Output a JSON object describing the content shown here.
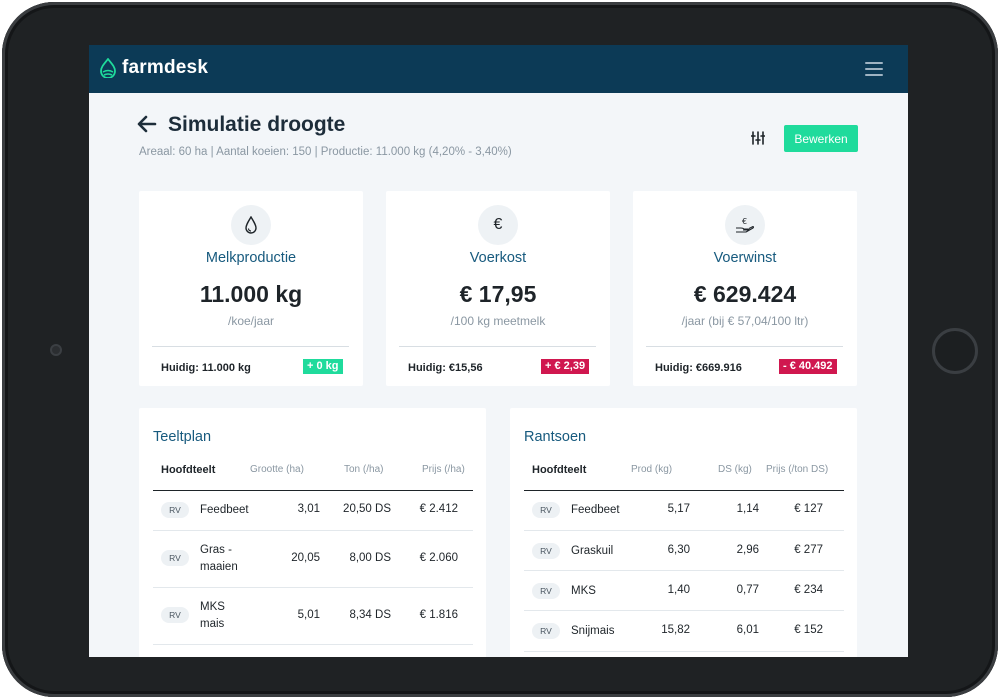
{
  "app": {
    "name": "farmdesk"
  },
  "page": {
    "title": "Simulatie droogte",
    "subtitle": "Areaal: 60 ha  |  Aantal koeien: 150  |  Productie:  11.000 kg (4,20% - 3,40%)",
    "edit_label": "Bewerken"
  },
  "cards": [
    {
      "icon": "droplet-icon",
      "title": "Melkproductie",
      "value": "11.000 kg",
      "unit": "/koe/jaar",
      "current": "Huidig: 11.000 kg",
      "delta": "+ 0 kg",
      "delta_color": "#1fdb9c"
    },
    {
      "icon": "euro-icon",
      "title": "Voerkost",
      "value": "€ 17,95",
      "unit": "/100 kg meetmelk",
      "current": "Huidig: €15,56",
      "delta": "+ € 2,39",
      "delta_color": "#d0174f"
    },
    {
      "icon": "euro-hand-icon",
      "title": "Voerwinst",
      "value": "€ 629.424",
      "unit": "/jaar (bij € 57,04/100 ltr)",
      "current": "Huidig: €669.916",
      "delta": "- € 40.492",
      "delta_color": "#d0174f"
    }
  ],
  "teeltplan": {
    "title": "Teeltplan",
    "headers": {
      "main": "Hoofdteelt",
      "c1": "Grootte (ha)",
      "c2": "Ton (/ha)",
      "c3": "Prijs (/ha)"
    },
    "rows": [
      {
        "tag": "RV",
        "name": "Feedbeet",
        "c1": "3,01",
        "c2": "20,50 DS",
        "c3": "€ 2.412"
      },
      {
        "tag": "RV",
        "name": "Gras -\nmaaien",
        "c1": "20,05",
        "c2": "8,00 DS",
        "c3": "€ 2.060"
      },
      {
        "tag": "RV",
        "name": "MKS\nmais",
        "c1": "5,01",
        "c2": "8,34 DS",
        "c3": "€ 1.816"
      }
    ]
  },
  "rantsoen": {
    "title": "Rantsoen",
    "headers": {
      "main": "Hoofdteelt",
      "c1": "Prod (kg)",
      "c2": "DS (kg)",
      "c3": "Prijs (/ton DS)"
    },
    "rows": [
      {
        "tag": "RV",
        "name": "Feedbeet",
        "c1": "5,17",
        "c2": "1,14",
        "c3": "€ 127"
      },
      {
        "tag": "RV",
        "name": "Graskuil",
        "c1": "6,30",
        "c2": "2,96",
        "c3": "€ 277"
      },
      {
        "tag": "RV",
        "name": "MKS",
        "c1": "1,40",
        "c2": "0,77",
        "c3": "€ 234"
      },
      {
        "tag": "RV",
        "name": "Snijmais",
        "c1": "15,82",
        "c2": "6,01",
        "c3": "€ 152"
      }
    ]
  },
  "colors": {
    "nav": "#0c3a56",
    "accent": "#1fdb9c",
    "negative": "#d0174f",
    "heading": "#175a7e"
  }
}
